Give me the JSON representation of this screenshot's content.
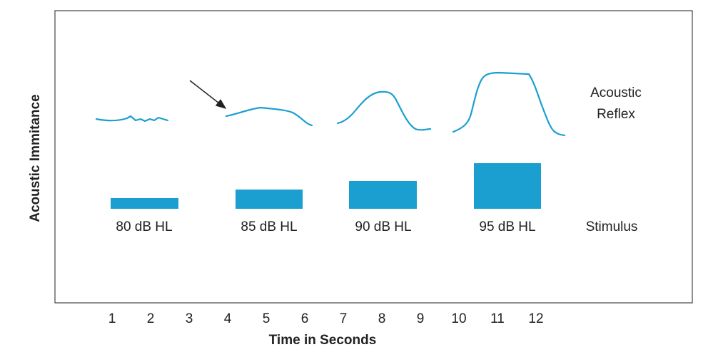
{
  "y_axis": {
    "label": "Acoustic Immitance"
  },
  "x_axis": {
    "title": "Time in Seconds",
    "ticks": [
      "1",
      "2",
      "3",
      "4",
      "5",
      "6",
      "7",
      "8",
      "9",
      "10",
      "11",
      "12"
    ]
  },
  "response": {
    "label_lines": [
      "Acoustic",
      "Reflex"
    ]
  },
  "stimulus": {
    "label": "Stimulus",
    "levels": [
      "80 dB HL",
      "85 dB HL",
      "90 dB HL",
      "95 dB HL"
    ]
  }
}
